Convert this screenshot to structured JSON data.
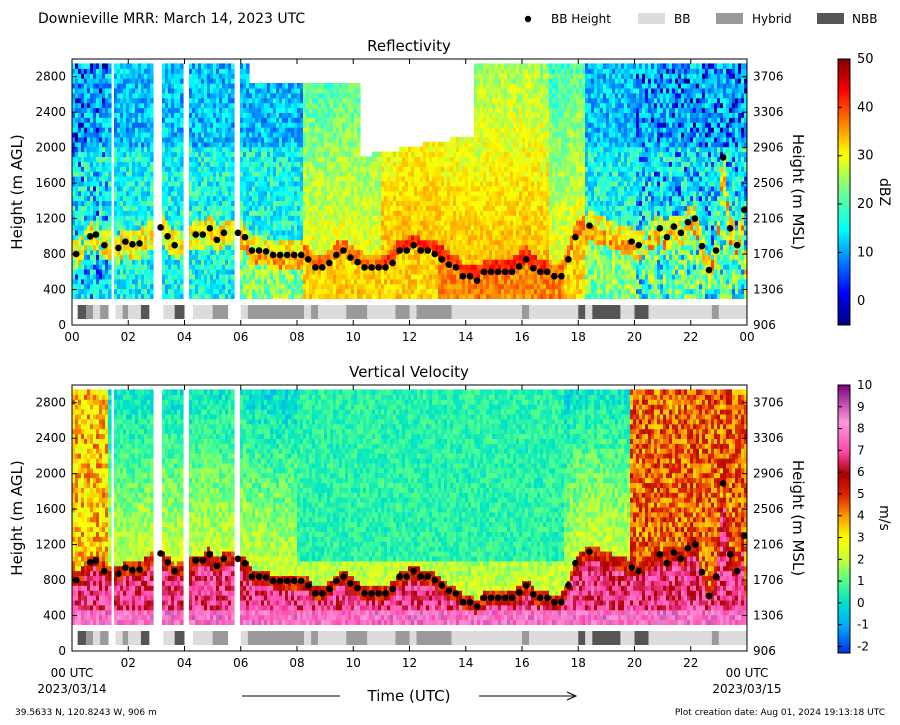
{
  "page": {
    "title": "Downieville MRR:  March 14, 2023 UTC",
    "x_axis_title": "Time (UTC)",
    "x_start_label": "00 UTC",
    "x_start_date": "2023/03/14",
    "x_end_label": "00 UTC",
    "x_end_date": "2023/03/15",
    "location": "39.5633 N, 120.8243 W, 906 m",
    "creation": "Plot creation date: Aug 01, 2024 19:13:18 UTC"
  },
  "legend": [
    {
      "label": "BB Height",
      "kind": "marker",
      "color": "#000000"
    },
    {
      "label": "BB",
      "kind": "patch",
      "color": "#dcdcdc"
    },
    {
      "label": "Hybrid",
      "kind": "patch",
      "color": "#9a9a9a"
    },
    {
      "label": "NBB",
      "kind": "patch",
      "color": "#555555"
    }
  ],
  "chart_data": [
    {
      "type": "heatmap",
      "title": "Reflectivity",
      "ylabel": "Height (m AGL)",
      "y2label": "Height (m MSL)",
      "colorbar_label": "dBZ",
      "colorbar_range": [
        -5,
        50
      ],
      "colorbar_ticks": [
        "0",
        "10",
        "20",
        "30",
        "40",
        "50"
      ],
      "colorbar_tick_values": [
        0,
        10,
        20,
        30,
        40,
        50
      ],
      "xlim": [
        0,
        24
      ],
      "ylim": [
        0,
        3000
      ],
      "x_ticks": [
        "00",
        "02",
        "04",
        "06",
        "08",
        "10",
        "12",
        "14",
        "16",
        "18",
        "20",
        "22",
        "00"
      ],
      "y_ticks": [
        "0",
        "400",
        "800",
        "1200",
        "1600",
        "2000",
        "2400",
        "2800"
      ],
      "y2_ticks": [
        "906",
        "1306",
        "1706",
        "2106",
        "2506",
        "2906",
        "3306",
        "3706"
      ],
      "colormap": "jet"
    },
    {
      "type": "heatmap",
      "title": "Vertical Velocity",
      "ylabel": "Height (m AGL)",
      "y2label": "Height (m MSL)",
      "colorbar_label": "m/s",
      "colorbar_range": [
        -2.3,
        10
      ],
      "colorbar_ticks": [
        "-2",
        "-1",
        "0",
        "1",
        "2",
        "3",
        "4",
        "5",
        "6",
        "7",
        "8",
        "9",
        "10"
      ],
      "colorbar_tick_values": [
        -2,
        -1,
        0,
        1,
        2,
        3,
        4,
        5,
        6,
        7,
        8,
        9,
        10
      ],
      "xlim": [
        0,
        24
      ],
      "ylim": [
        0,
        3000
      ],
      "x_ticks": [
        "",
        "02",
        "04",
        "06",
        "08",
        "10",
        "12",
        "14",
        "16",
        "18",
        "20",
        "22",
        ""
      ],
      "y_ticks": [
        "0",
        "400",
        "800",
        "1200",
        "1600",
        "2000",
        "2400",
        "2800"
      ],
      "y2_ticks": [
        "906",
        "1306",
        "1706",
        "2106",
        "2506",
        "2906",
        "3306",
        "3706"
      ],
      "colormap": "velocity"
    }
  ],
  "bb_height": {
    "time": [
      0.15,
      0.65,
      0.85,
      1.15,
      1.65,
      1.9,
      2.15,
      2.4,
      3.15,
      3.4,
      3.65,
      4.4,
      4.65,
      4.9,
      5.15,
      5.4,
      5.9,
      6.15,
      6.4,
      6.65,
      6.9,
      7.15,
      7.4,
      7.65,
      7.9,
      8.15,
      8.4,
      8.65,
      8.9,
      9.15,
      9.4,
      9.65,
      9.9,
      10.15,
      10.4,
      10.65,
      10.9,
      11.15,
      11.4,
      11.65,
      11.9,
      12.15,
      12.4,
      12.65,
      12.9,
      13.15,
      13.4,
      13.65,
      13.9,
      14.15,
      14.4,
      14.65,
      14.9,
      15.15,
      15.4,
      15.65,
      15.9,
      16.15,
      16.4,
      16.65,
      16.9,
      17.15,
      17.4,
      17.65,
      17.9,
      18.4,
      19.9,
      20.15,
      20.9,
      21.15,
      21.4,
      21.65,
      21.9,
      22.15,
      22.4,
      22.65,
      22.9,
      23.15,
      23.4,
      23.65,
      23.9
    ],
    "height": [
      800,
      1000,
      1020,
      900,
      870,
      940,
      910,
      920,
      1100,
      1000,
      900,
      1020,
      1020,
      1090,
      960,
      1040,
      1040,
      990,
      840,
      840,
      830,
      790,
      790,
      790,
      790,
      790,
      740,
      650,
      650,
      700,
      790,
      840,
      760,
      710,
      650,
      650,
      650,
      650,
      700,
      840,
      840,
      900,
      840,
      840,
      800,
      740,
      680,
      650,
      550,
      550,
      500,
      600,
      600,
      600,
      600,
      600,
      660,
      740,
      640,
      600,
      600,
      550,
      550,
      740,
      990,
      1120,
      940,
      900,
      1090,
      990,
      1110,
      1040,
      1160,
      1200,
      890,
      620,
      840,
      1890,
      1090,
      900,
      1300,
      690
    ]
  },
  "bright_band_type": {
    "segments": [
      {
        "start": 0.2,
        "end": 0.5,
        "type": "NBB"
      },
      {
        "start": 0.5,
        "end": 0.75,
        "type": "Hybrid"
      },
      {
        "start": 0.75,
        "end": 1.0,
        "type": "BB"
      },
      {
        "start": 1.0,
        "end": 1.3,
        "type": "Hybrid"
      },
      {
        "start": 1.55,
        "end": 1.8,
        "type": "BB"
      },
      {
        "start": 1.8,
        "end": 2.0,
        "type": "Hybrid"
      },
      {
        "start": 2.0,
        "end": 2.45,
        "type": "BB"
      },
      {
        "start": 2.45,
        "end": 2.75,
        "type": "NBB"
      },
      {
        "start": 3.25,
        "end": 3.65,
        "type": "BB"
      },
      {
        "start": 3.65,
        "end": 4.0,
        "type": "NBB"
      },
      {
        "start": 4.3,
        "end": 5.0,
        "type": "BB"
      },
      {
        "start": 5.0,
        "end": 5.55,
        "type": "Hybrid"
      },
      {
        "start": 6.0,
        "end": 6.25,
        "type": "BB"
      },
      {
        "start": 6.25,
        "end": 8.25,
        "type": "Hybrid"
      },
      {
        "start": 8.25,
        "end": 8.5,
        "type": "BB"
      },
      {
        "start": 8.5,
        "end": 8.75,
        "type": "Hybrid"
      },
      {
        "start": 8.75,
        "end": 9.75,
        "type": "BB"
      },
      {
        "start": 9.75,
        "end": 10.5,
        "type": "Hybrid"
      },
      {
        "start": 10.5,
        "end": 11.5,
        "type": "BB"
      },
      {
        "start": 11.5,
        "end": 12.0,
        "type": "Hybrid"
      },
      {
        "start": 12.0,
        "end": 12.25,
        "type": "BB"
      },
      {
        "start": 12.25,
        "end": 13.5,
        "type": "Hybrid"
      },
      {
        "start": 13.5,
        "end": 16.0,
        "type": "BB"
      },
      {
        "start": 16.0,
        "end": 16.25,
        "type": "Hybrid"
      },
      {
        "start": 16.25,
        "end": 18.0,
        "type": "BB"
      },
      {
        "start": 18.0,
        "end": 18.25,
        "type": "NBB"
      },
      {
        "start": 18.25,
        "end": 18.5,
        "type": "BB"
      },
      {
        "start": 18.5,
        "end": 19.5,
        "type": "NBB"
      },
      {
        "start": 19.5,
        "end": 20.0,
        "type": "BB"
      },
      {
        "start": 20.0,
        "end": 20.5,
        "type": "NBB"
      },
      {
        "start": 20.5,
        "end": 22.75,
        "type": "BB"
      },
      {
        "start": 22.75,
        "end": 23.0,
        "type": "Hybrid"
      },
      {
        "start": 23.0,
        "end": 24.0,
        "type": "BB"
      }
    ]
  }
}
